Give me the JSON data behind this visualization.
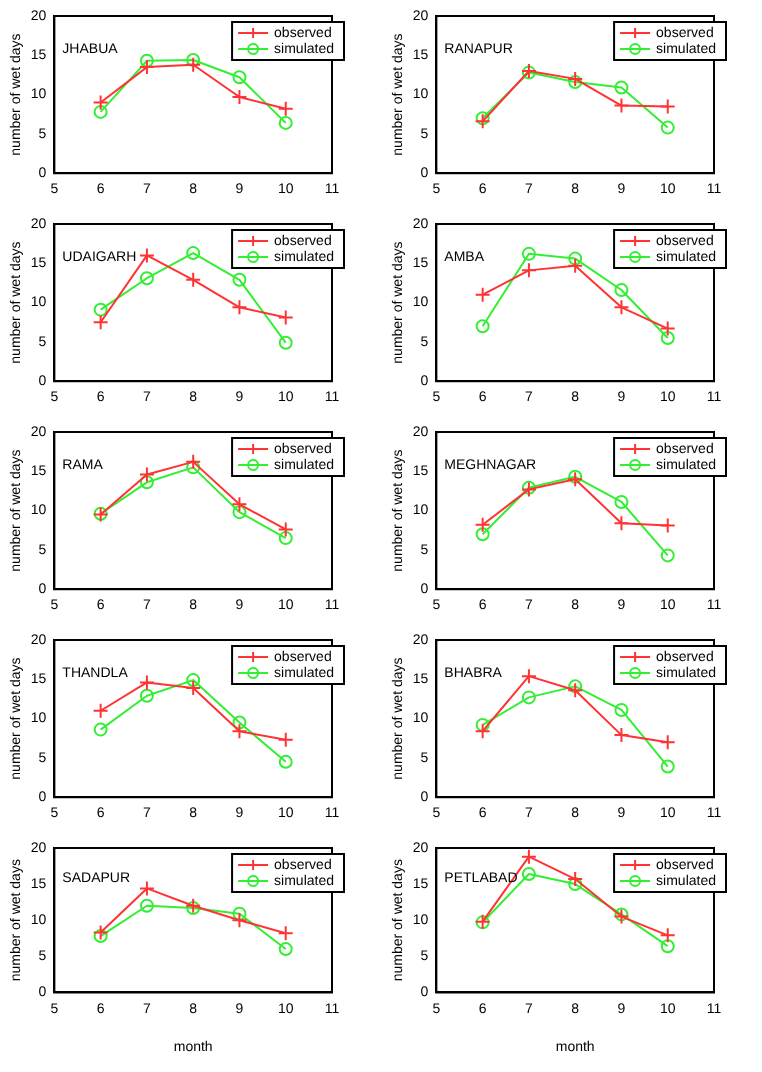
{
  "chart_data": [
    {
      "type": "line",
      "annotations": [
        "JHABUA"
      ],
      "ylabel": "number of wet days",
      "x": [
        6,
        7,
        8,
        9,
        10
      ],
      "xlim": [
        5,
        11
      ],
      "xticks": [
        5,
        6,
        7,
        8,
        9,
        10,
        11
      ],
      "ylim": [
        0,
        20
      ],
      "yticks": [
        0,
        5,
        10,
        15,
        20
      ],
      "legend": "top right",
      "line_style": "solid",
      "series": [
        {
          "name": "observed",
          "color": "#ff3333",
          "marker": "cross",
          "values": [
            9,
            13.5,
            13.8,
            9.7,
            8.2
          ]
        },
        {
          "name": "simulated",
          "color": "#33ee33",
          "marker": "circle",
          "values": [
            7.8,
            14.3,
            14.4,
            12.2,
            6.4
          ]
        }
      ]
    },
    {
      "type": "line",
      "annotations": [
        "RANAPUR"
      ],
      "ylabel": "number of wet days",
      "x": [
        6,
        7,
        8,
        9,
        10
      ],
      "xlim": [
        5,
        11
      ],
      "xticks": [
        5,
        6,
        7,
        8,
        9,
        10,
        11
      ],
      "ylim": [
        0,
        20
      ],
      "yticks": [
        0,
        5,
        10,
        15,
        20
      ],
      "legend": "top right",
      "line_style": "solid",
      "series": [
        {
          "name": "observed",
          "color": "#ff3333",
          "marker": "cross",
          "values": [
            6.6,
            13,
            12,
            8.6,
            8.5
          ]
        },
        {
          "name": "simulated",
          "color": "#33ee33",
          "marker": "circle",
          "values": [
            7,
            12.8,
            11.6,
            10.9,
            5.8
          ]
        }
      ]
    },
    {
      "type": "line",
      "annotations": [
        "UDAIGARH"
      ],
      "ylabel": "number of wet days",
      "x": [
        6,
        7,
        8,
        9,
        10
      ],
      "xlim": [
        5,
        11
      ],
      "xticks": [
        5,
        6,
        7,
        8,
        9,
        10,
        11
      ],
      "ylim": [
        0,
        20
      ],
      "yticks": [
        0,
        5,
        10,
        15,
        20
      ],
      "legend": "top right",
      "line_style": "solid",
      "series": [
        {
          "name": "observed",
          "color": "#ff3333",
          "marker": "cross",
          "values": [
            7.5,
            16,
            12.9,
            9.4,
            8.1
          ]
        },
        {
          "name": "simulated",
          "color": "#33ee33",
          "marker": "circle",
          "values": [
            9.1,
            13.1,
            16.3,
            12.9,
            4.9
          ]
        }
      ]
    },
    {
      "type": "line",
      "annotations": [
        "AMBA"
      ],
      "ylabel": "number of wet days",
      "x": [
        6,
        7,
        8,
        9,
        10
      ],
      "xlim": [
        5,
        11
      ],
      "xticks": [
        5,
        6,
        7,
        8,
        9,
        10,
        11
      ],
      "ylim": [
        0,
        20
      ],
      "yticks": [
        0,
        5,
        10,
        15,
        20
      ],
      "legend": "top right",
      "line_style": "solid",
      "series": [
        {
          "name": "observed",
          "color": "#ff3333",
          "marker": "cross",
          "values": [
            11,
            14.1,
            14.7,
            9.4,
            6.7
          ]
        },
        {
          "name": "simulated",
          "color": "#33ee33",
          "marker": "circle",
          "values": [
            7,
            16.2,
            15.6,
            11.6,
            5.5
          ]
        }
      ]
    },
    {
      "type": "line",
      "annotations": [
        "RAMA"
      ],
      "ylabel": "number of wet days",
      "x": [
        6,
        7,
        8,
        9,
        10
      ],
      "xlim": [
        5,
        11
      ],
      "xticks": [
        5,
        6,
        7,
        8,
        9,
        10,
        11
      ],
      "ylim": [
        0,
        20
      ],
      "yticks": [
        0,
        5,
        10,
        15,
        20
      ],
      "legend": "top right",
      "line_style": "solid",
      "series": [
        {
          "name": "observed",
          "color": "#ff3333",
          "marker": "cross",
          "values": [
            9.5,
            14.6,
            16.2,
            10.8,
            7.6
          ]
        },
        {
          "name": "simulated",
          "color": "#33ee33",
          "marker": "circle",
          "values": [
            9.6,
            13.6,
            15.5,
            9.8,
            6.5
          ]
        }
      ]
    },
    {
      "type": "line",
      "annotations": [
        "MEGHNAGAR"
      ],
      "ylabel": "number of wet days",
      "x": [
        6,
        7,
        8,
        9,
        10
      ],
      "xlim": [
        5,
        11
      ],
      "xticks": [
        5,
        6,
        7,
        8,
        9,
        10,
        11
      ],
      "ylim": [
        0,
        20
      ],
      "yticks": [
        0,
        5,
        10,
        15,
        20
      ],
      "legend": "top right",
      "line_style": "solid",
      "series": [
        {
          "name": "observed",
          "color": "#ff3333",
          "marker": "cross",
          "values": [
            8.2,
            12.7,
            14,
            8.4,
            8.1
          ]
        },
        {
          "name": "simulated",
          "color": "#33ee33",
          "marker": "circle",
          "values": [
            7,
            12.9,
            14.3,
            11.1,
            4.3
          ]
        }
      ]
    },
    {
      "type": "line",
      "annotations": [
        "THANDLA"
      ],
      "ylabel": "number of wet days",
      "x": [
        6,
        7,
        8,
        9,
        10
      ],
      "xlim": [
        5,
        11
      ],
      "xticks": [
        5,
        6,
        7,
        8,
        9,
        10,
        11
      ],
      "ylim": [
        0,
        20
      ],
      "yticks": [
        0,
        5,
        10,
        15,
        20
      ],
      "legend": "top right",
      "line_style": "solid",
      "series": [
        {
          "name": "observed",
          "color": "#ff3333",
          "marker": "cross",
          "values": [
            11,
            14.6,
            13.9,
            8.4,
            7.3
          ]
        },
        {
          "name": "simulated",
          "color": "#33ee33",
          "marker": "circle",
          "values": [
            8.6,
            12.9,
            14.9,
            9.5,
            4.5
          ]
        }
      ]
    },
    {
      "type": "line",
      "annotations": [
        "BHABRA"
      ],
      "ylabel": "number of wet days",
      "x": [
        6,
        7,
        8,
        9,
        10
      ],
      "xlim": [
        5,
        11
      ],
      "xticks": [
        5,
        6,
        7,
        8,
        9,
        10,
        11
      ],
      "ylim": [
        0,
        20
      ],
      "yticks": [
        0,
        5,
        10,
        15,
        20
      ],
      "legend": "top right",
      "line_style": "solid",
      "series": [
        {
          "name": "observed",
          "color": "#ff3333",
          "marker": "cross",
          "values": [
            8.4,
            15.4,
            13.6,
            7.9,
            7
          ]
        },
        {
          "name": "simulated",
          "color": "#33ee33",
          "marker": "circle",
          "values": [
            9.2,
            12.7,
            14.1,
            11.1,
            3.9
          ]
        }
      ]
    },
    {
      "type": "line",
      "annotations": [
        "SADAPUR"
      ],
      "xlabel": "month",
      "ylabel": "number of wet days",
      "x": [
        6,
        7,
        8,
        9,
        10
      ],
      "xlim": [
        5,
        11
      ],
      "xticks": [
        5,
        6,
        7,
        8,
        9,
        10,
        11
      ],
      "ylim": [
        0,
        20
      ],
      "yticks": [
        0,
        5,
        10,
        15,
        20
      ],
      "legend": "top right",
      "line_style": "solid",
      "series": [
        {
          "name": "observed",
          "color": "#ff3333",
          "marker": "cross",
          "values": [
            8.3,
            14.4,
            12,
            10,
            8.2
          ]
        },
        {
          "name": "simulated",
          "color": "#33ee33",
          "marker": "circle",
          "values": [
            7.8,
            12,
            11.7,
            10.9,
            6
          ]
        }
      ]
    },
    {
      "type": "line",
      "annotations": [
        "PETLABAD"
      ],
      "xlabel": "month",
      "ylabel": "number of wet days",
      "x": [
        6,
        7,
        8,
        9,
        10
      ],
      "xlim": [
        5,
        11
      ],
      "xticks": [
        5,
        6,
        7,
        8,
        9,
        10,
        11
      ],
      "ylim": [
        0,
        20
      ],
      "yticks": [
        0,
        5,
        10,
        15,
        20
      ],
      "legend": "top right",
      "line_style": "solid",
      "series": [
        {
          "name": "observed",
          "color": "#ff3333",
          "marker": "cross",
          "values": [
            9.8,
            18.8,
            15.7,
            10.5,
            7.9
          ]
        },
        {
          "name": "simulated",
          "color": "#33ee33",
          "marker": "circle",
          "values": [
            9.7,
            16.4,
            15,
            10.8,
            6.4
          ]
        }
      ]
    }
  ]
}
